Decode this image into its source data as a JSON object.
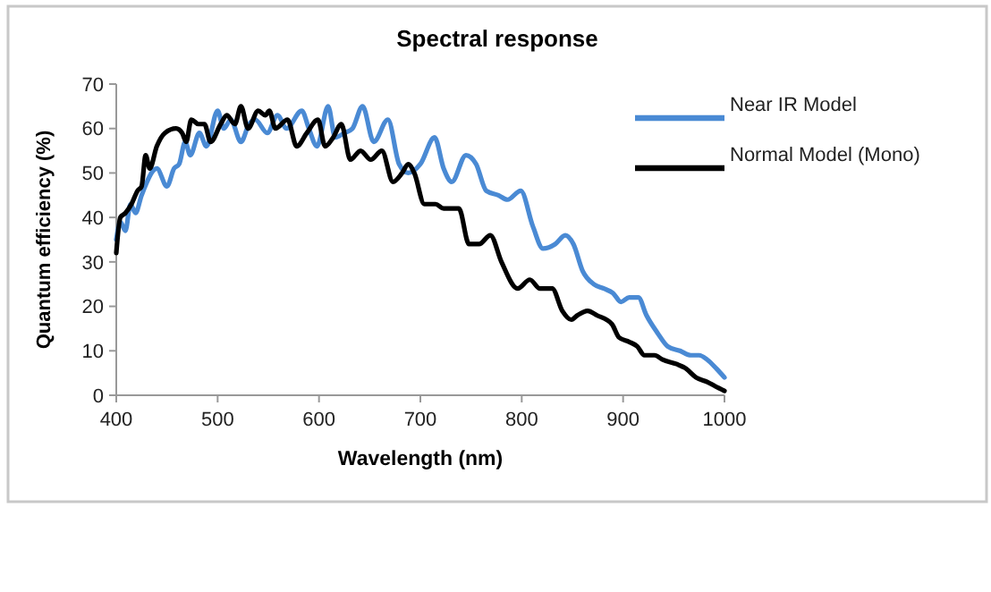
{
  "chart_data": {
    "type": "line",
    "title": "Spectral response",
    "xlabel": "Wavelength (nm)",
    "ylabel": "Quantum efficiency (%)",
    "xlim": [
      400,
      1000
    ],
    "xticks": [
      400,
      500,
      600,
      700,
      800,
      900,
      1000
    ],
    "ylim": [
      0,
      70
    ],
    "yticks": [
      0,
      10,
      20,
      30,
      40,
      50,
      60,
      70
    ],
    "legend": "right",
    "series": [
      {
        "name": "Near IR Model",
        "color": "#4a8ad4",
        "x": [
          400,
          404,
          409,
          414,
          419,
          425,
          440,
          450,
          457,
          462,
          468,
          473,
          482,
          489,
          500,
          506,
          513,
          523,
          531,
          537,
          549,
          559,
          568,
          583,
          590,
          598,
          609,
          616,
          625,
          633,
          643,
          654,
          668,
          679,
          688,
          700,
          714,
          723,
          731,
          745,
          755,
          765,
          777,
          786,
          799,
          811,
          821,
          833,
          843,
          851,
          860,
          871,
          881,
          890,
          898,
          906,
          915,
          923,
          934,
          944,
          956,
          967,
          975,
          983,
          992,
          1000
        ],
        "values": [
          35,
          39,
          37,
          43,
          41,
          45,
          51,
          47,
          51,
          52,
          57,
          54,
          59,
          56,
          64,
          60,
          62,
          57,
          61,
          62,
          59,
          63,
          60,
          64,
          60,
          56,
          65,
          58,
          59,
          60,
          65,
          57,
          62,
          52,
          50,
          52,
          58,
          51,
          48,
          54,
          52,
          46,
          45,
          44,
          46,
          38,
          33,
          34,
          36,
          34,
          28,
          25,
          24,
          23,
          21,
          22,
          22,
          18,
          14,
          11,
          10,
          9,
          9,
          8,
          6,
          4
        ]
      },
      {
        "name": "Normal Model (Mono)",
        "color": "#000000",
        "x": [
          400,
          404,
          409,
          415,
          421,
          425,
          429,
          433,
          440,
          448,
          459,
          465,
          469,
          474,
          481,
          487,
          493,
          503,
          509,
          517,
          523,
          530,
          540,
          547,
          551,
          557,
          569,
          578,
          588,
          599,
          606,
          614,
          622,
          631,
          641,
          651,
          662,
          673,
          682,
          688,
          694,
          704,
          715,
          723,
          738,
          748,
          758,
          769,
          780,
          796,
          808,
          818,
          830,
          840,
          849,
          855,
          865,
          874,
          889,
          896,
          906,
          914,
          921,
          931,
          939,
          953,
          962,
          972,
          983,
          991,
          1000
        ],
        "values": [
          32,
          40,
          41,
          43,
          46,
          47,
          54,
          51,
          56,
          59,
          60,
          59,
          57,
          62,
          61,
          61,
          57,
          61,
          63,
          61,
          65,
          60,
          64,
          63,
          64,
          60,
          62,
          56,
          59,
          62,
          56,
          58,
          61,
          53,
          55,
          53,
          55,
          48,
          50,
          52,
          50,
          43,
          43,
          42,
          42,
          34,
          34,
          36,
          30,
          24,
          26,
          24,
          24,
          19,
          17,
          18,
          19,
          18,
          16,
          13,
          12,
          11,
          9,
          9,
          8,
          7,
          6,
          4,
          3,
          2,
          1
        ]
      }
    ]
  }
}
